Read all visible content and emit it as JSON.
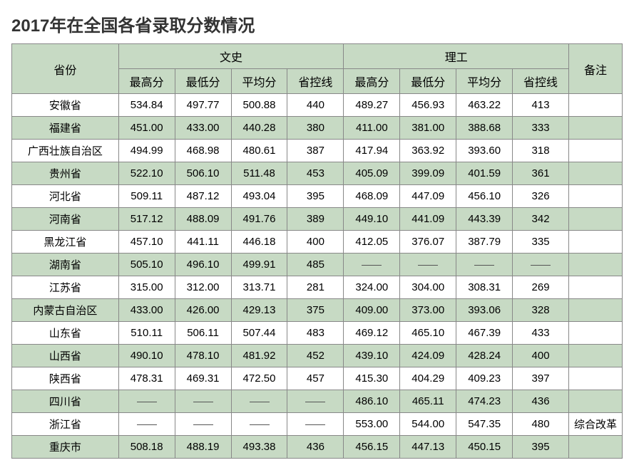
{
  "title": "2017年在全国各省录取分数情况",
  "title_fontsize": 24,
  "title_color": "#333333",
  "table": {
    "type": "table",
    "header_bg": "#c7dac4",
    "row_colors": [
      "#ffffff",
      "#c7dac4"
    ],
    "border_color": "#888888",
    "cell_fontsize": 15,
    "header_fontsize": 16,
    "columns": {
      "province": "省份",
      "group_arts": "文史",
      "group_sci": "理工",
      "note": "备注",
      "sub": [
        "最高分",
        "最低分",
        "平均分",
        "省控线"
      ]
    },
    "col_widths": {
      "province": 148,
      "value": 78,
      "note": 74
    },
    "rows": [
      {
        "prov": "安徽省",
        "arts": [
          "534.84",
          "497.77",
          "500.88",
          "440"
        ],
        "sci": [
          "489.27",
          "456.93",
          "463.22",
          "413"
        ],
        "note": ""
      },
      {
        "prov": "福建省",
        "arts": [
          "451.00",
          "433.00",
          "440.28",
          "380"
        ],
        "sci": [
          "411.00",
          "381.00",
          "388.68",
          "333"
        ],
        "note": ""
      },
      {
        "prov": "广西壮族自治区",
        "arts": [
          "494.99",
          "468.98",
          "480.61",
          "387"
        ],
        "sci": [
          "417.94",
          "363.92",
          "393.60",
          "318"
        ],
        "note": ""
      },
      {
        "prov": "贵州省",
        "arts": [
          "522.10",
          "506.10",
          "511.48",
          "453"
        ],
        "sci": [
          "405.09",
          "399.09",
          "401.59",
          "361"
        ],
        "note": ""
      },
      {
        "prov": "河北省",
        "arts": [
          "509.11",
          "487.12",
          "493.04",
          "395"
        ],
        "sci": [
          "468.09",
          "447.09",
          "456.10",
          "326"
        ],
        "note": ""
      },
      {
        "prov": "河南省",
        "arts": [
          "517.12",
          "488.09",
          "491.76",
          "389"
        ],
        "sci": [
          "449.10",
          "441.09",
          "443.39",
          "342"
        ],
        "note": ""
      },
      {
        "prov": "黑龙江省",
        "arts": [
          "457.10",
          "441.11",
          "446.18",
          "400"
        ],
        "sci": [
          "412.05",
          "376.07",
          "387.79",
          "335"
        ],
        "note": ""
      },
      {
        "prov": "湖南省",
        "arts": [
          "505.10",
          "496.10",
          "499.91",
          "485"
        ],
        "sci": [
          "—",
          "—",
          "—",
          "—"
        ],
        "note": ""
      },
      {
        "prov": "江苏省",
        "arts": [
          "315.00",
          "312.00",
          "313.71",
          "281"
        ],
        "sci": [
          "324.00",
          "304.00",
          "308.31",
          "269"
        ],
        "note": ""
      },
      {
        "prov": "内蒙古自治区",
        "arts": [
          "433.00",
          "426.00",
          "429.13",
          "375"
        ],
        "sci": [
          "409.00",
          "373.00",
          "393.06",
          "328"
        ],
        "note": ""
      },
      {
        "prov": "山东省",
        "arts": [
          "510.11",
          "506.11",
          "507.44",
          "483"
        ],
        "sci": [
          "469.12",
          "465.10",
          "467.39",
          "433"
        ],
        "note": ""
      },
      {
        "prov": "山西省",
        "arts": [
          "490.10",
          "478.10",
          "481.92",
          "452"
        ],
        "sci": [
          "439.10",
          "424.09",
          "428.24",
          "400"
        ],
        "note": ""
      },
      {
        "prov": "陕西省",
        "arts": [
          "478.31",
          "469.31",
          "472.50",
          "457"
        ],
        "sci": [
          "415.30",
          "404.29",
          "409.23",
          "397"
        ],
        "note": ""
      },
      {
        "prov": "四川省",
        "arts": [
          "—",
          "—",
          "—",
          "—"
        ],
        "sci": [
          "486.10",
          "465.11",
          "474.23",
          "436"
        ],
        "note": ""
      },
      {
        "prov": "浙江省",
        "arts": [
          "—",
          "—",
          "—",
          "—"
        ],
        "sci": [
          "553.00",
          "544.00",
          "547.35",
          "480"
        ],
        "note": "综合改革"
      },
      {
        "prov": "重庆市",
        "arts": [
          "508.18",
          "488.19",
          "493.38",
          "436"
        ],
        "sci": [
          "456.15",
          "447.13",
          "450.15",
          "395"
        ],
        "note": ""
      }
    ]
  }
}
